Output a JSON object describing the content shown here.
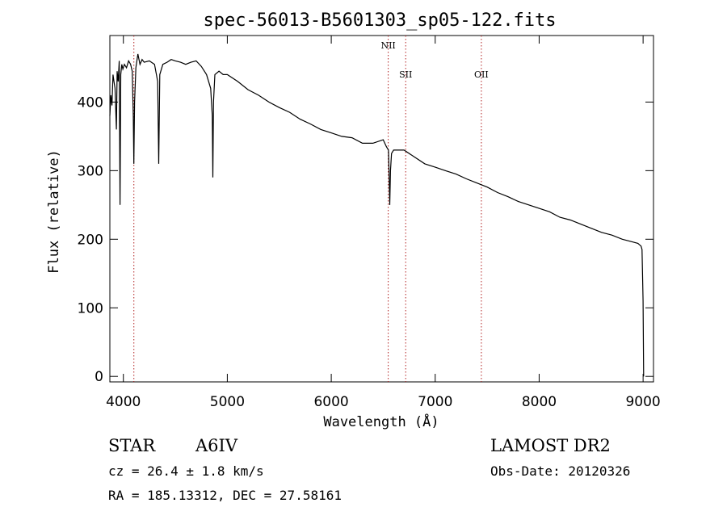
{
  "chart_data": {
    "type": "line",
    "title": "spec-56013-B5601303_sp05-122.fits",
    "xlabel": "Wavelength (Å)",
    "ylabel": "Flux (relative)",
    "xlim": [
      3870,
      9100
    ],
    "ylim": [
      -8,
      497
    ],
    "xticks": [
      4000,
      5000,
      6000,
      7000,
      8000,
      9000
    ],
    "yticks": [
      0,
      100,
      200,
      300,
      400
    ],
    "grid": false,
    "line_markers": [
      {
        "name": "",
        "wavelength": 4101
      },
      {
        "name": "NII",
        "wavelength": 6548
      },
      {
        "name": "SII",
        "wavelength": 6716
      },
      {
        "name": "OII",
        "wavelength": 7444
      }
    ],
    "series": [
      {
        "name": "",
        "x": [
          3870,
          3880,
          3890,
          3900,
          3910,
          3920,
          3933,
          3940,
          3950,
          3960,
          3968,
          3975,
          3985,
          3995,
          4010,
          4030,
          4050,
          4070,
          4085,
          4095,
          4101,
          4108,
          4120,
          4140,
          4160,
          4180,
          4200,
          4250,
          4300,
          4330,
          4340,
          4350,
          4380,
          4420,
          4460,
          4500,
          4550,
          4600,
          4650,
          4700,
          4750,
          4800,
          4840,
          4855,
          4861,
          4867,
          4880,
          4920,
          4960,
          5000,
          5100,
          5200,
          5300,
          5400,
          5500,
          5600,
          5700,
          5800,
          5900,
          6000,
          6100,
          6200,
          6300,
          6400,
          6500,
          6530,
          6550,
          6556,
          6563,
          6570,
          6580,
          6600,
          6650,
          6700,
          6800,
          6900,
          7000,
          7100,
          7200,
          7300,
          7400,
          7500,
          7600,
          7700,
          7800,
          7900,
          8000,
          8100,
          8200,
          8300,
          8400,
          8500,
          8600,
          8700,
          8800,
          8900,
          8950,
          8980,
          8990,
          9000,
          9005
        ],
        "y": [
          380,
          410,
          395,
          440,
          430,
          420,
          360,
          445,
          430,
          460,
          250,
          440,
          455,
          448,
          455,
          450,
          460,
          455,
          445,
          380,
          310,
          400,
          450,
          470,
          455,
          462,
          458,
          460,
          455,
          430,
          310,
          440,
          455,
          458,
          462,
          460,
          458,
          455,
          458,
          460,
          452,
          440,
          420,
          380,
          290,
          400,
          440,
          445,
          440,
          440,
          430,
          418,
          410,
          400,
          392,
          385,
          375,
          368,
          360,
          355,
          350,
          348,
          340,
          340,
          345,
          335,
          330,
          300,
          250,
          300,
          325,
          330,
          330,
          330,
          320,
          310,
          305,
          300,
          295,
          288,
          282,
          276,
          268,
          262,
          255,
          250,
          245,
          240,
          232,
          228,
          222,
          216,
          210,
          206,
          200,
          196,
          194,
          190,
          185,
          110,
          0
        ]
      }
    ]
  },
  "info": {
    "object_type": "STAR",
    "subclass": "A6IV",
    "survey": "LAMOST DR2",
    "cz": "cz = 26.4 ± 1.8 km/s",
    "coords": "RA = 185.13312, DEC =  27.58161",
    "obs_date": "Obs-Date: 20120326"
  }
}
